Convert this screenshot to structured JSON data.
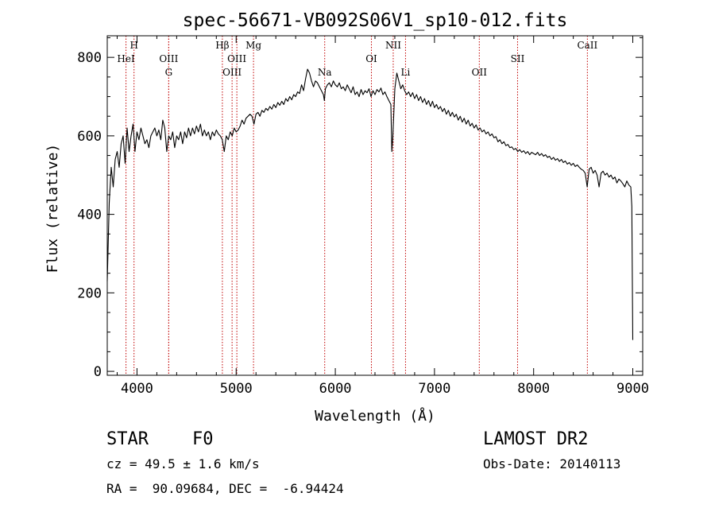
{
  "chart_data": {
    "type": "line",
    "title": "spec-56671-VB092S06V1_sp10-012.fits",
    "xlabel": "Wavelength (Å)",
    "ylabel": "Flux (relative)",
    "xlim": [
      3700,
      9100
    ],
    "ylim": [
      -10,
      855
    ],
    "xticks": [
      4000,
      5000,
      6000,
      7000,
      8000,
      9000
    ],
    "yticks": [
      0,
      200,
      400,
      600,
      800
    ],
    "grid": false,
    "line_color": "#000000",
    "marker_color": "#c00000",
    "spectral_lines": [
      {
        "label": "HeI",
        "wavelength": 3889,
        "row": 2
      },
      {
        "label": "H",
        "wavelength": 3970,
        "row": 1
      },
      {
        "label": "OIII",
        "wavelength": 4320,
        "row": 2
      },
      {
        "label": "G",
        "wavelength": 4320,
        "row": 3
      },
      {
        "label": "Hβ",
        "wavelength": 4861,
        "row": 1
      },
      {
        "label": "OIII",
        "wavelength": 5007,
        "row": 2
      },
      {
        "label": "OIII",
        "wavelength": 4959,
        "row": 3
      },
      {
        "label": "Mg",
        "wavelength": 5175,
        "row": 1
      },
      {
        "label": "Na",
        "wavelength": 5893,
        "row": 3
      },
      {
        "label": "OI",
        "wavelength": 6364,
        "row": 2
      },
      {
        "label": "NII",
        "wavelength": 6584,
        "row": 1
      },
      {
        "label": "Li",
        "wavelength": 6708,
        "row": 3
      },
      {
        "label": "OII",
        "wavelength": 7452,
        "row": 3
      },
      {
        "label": "SII",
        "wavelength": 7838,
        "row": 2
      },
      {
        "label": "CaII",
        "wavelength": 8542,
        "row": 1
      }
    ],
    "series": [
      {
        "points": [
          [
            3700,
            230
          ],
          [
            3720,
            430
          ],
          [
            3740,
            520
          ],
          [
            3760,
            470
          ],
          [
            3780,
            540
          ],
          [
            3800,
            560
          ],
          [
            3820,
            520
          ],
          [
            3840,
            580
          ],
          [
            3860,
            600
          ],
          [
            3880,
            530
          ],
          [
            3900,
            620
          ],
          [
            3920,
            560
          ],
          [
            3940,
            600
          ],
          [
            3960,
            630
          ],
          [
            3980,
            560
          ],
          [
            4000,
            610
          ],
          [
            4020,
            590
          ],
          [
            4040,
            620
          ],
          [
            4060,
            600
          ],
          [
            4080,
            580
          ],
          [
            4100,
            590
          ],
          [
            4120,
            570
          ],
          [
            4140,
            600
          ],
          [
            4160,
            610
          ],
          [
            4180,
            620
          ],
          [
            4200,
            600
          ],
          [
            4220,
            615
          ],
          [
            4240,
            590
          ],
          [
            4260,
            640
          ],
          [
            4280,
            620
          ],
          [
            4300,
            560
          ],
          [
            4320,
            600
          ],
          [
            4340,
            590
          ],
          [
            4360,
            610
          ],
          [
            4380,
            570
          ],
          [
            4400,
            600
          ],
          [
            4420,
            590
          ],
          [
            4440,
            610
          ],
          [
            4460,
            580
          ],
          [
            4480,
            610
          ],
          [
            4500,
            595
          ],
          [
            4520,
            620
          ],
          [
            4540,
            600
          ],
          [
            4560,
            620
          ],
          [
            4580,
            605
          ],
          [
            4600,
            625
          ],
          [
            4620,
            610
          ],
          [
            4640,
            630
          ],
          [
            4660,
            600
          ],
          [
            4680,
            615
          ],
          [
            4700,
            600
          ],
          [
            4720,
            610
          ],
          [
            4740,
            590
          ],
          [
            4760,
            610
          ],
          [
            4780,
            600
          ],
          [
            4800,
            615
          ],
          [
            4820,
            605
          ],
          [
            4840,
            600
          ],
          [
            4860,
            590
          ],
          [
            4880,
            560
          ],
          [
            4900,
            600
          ],
          [
            4920,
            590
          ],
          [
            4940,
            610
          ],
          [
            4960,
            600
          ],
          [
            4980,
            620
          ],
          [
            5000,
            610
          ],
          [
            5020,
            615
          ],
          [
            5040,
            625
          ],
          [
            5060,
            640
          ],
          [
            5080,
            630
          ],
          [
            5100,
            645
          ],
          [
            5120,
            650
          ],
          [
            5140,
            655
          ],
          [
            5160,
            650
          ],
          [
            5180,
            630
          ],
          [
            5200,
            655
          ],
          [
            5220,
            660
          ],
          [
            5240,
            650
          ],
          [
            5260,
            665
          ],
          [
            5280,
            660
          ],
          [
            5300,
            670
          ],
          [
            5320,
            665
          ],
          [
            5340,
            675
          ],
          [
            5360,
            668
          ],
          [
            5380,
            680
          ],
          [
            5400,
            672
          ],
          [
            5420,
            685
          ],
          [
            5440,
            678
          ],
          [
            5460,
            688
          ],
          [
            5480,
            680
          ],
          [
            5500,
            695
          ],
          [
            5520,
            688
          ],
          [
            5540,
            700
          ],
          [
            5560,
            692
          ],
          [
            5580,
            705
          ],
          [
            5600,
            700
          ],
          [
            5620,
            712
          ],
          [
            5640,
            708
          ],
          [
            5660,
            730
          ],
          [
            5680,
            715
          ],
          [
            5700,
            745
          ],
          [
            5720,
            770
          ],
          [
            5740,
            760
          ],
          [
            5760,
            740
          ],
          [
            5780,
            725
          ],
          [
            5800,
            740
          ],
          [
            5820,
            735
          ],
          [
            5840,
            725
          ],
          [
            5860,
            715
          ],
          [
            5880,
            705
          ],
          [
            5890,
            690
          ],
          [
            5900,
            720
          ],
          [
            5920,
            730
          ],
          [
            5940,
            735
          ],
          [
            5960,
            725
          ],
          [
            5980,
            740
          ],
          [
            6000,
            730
          ],
          [
            6020,
            725
          ],
          [
            6040,
            735
          ],
          [
            6060,
            720
          ],
          [
            6080,
            725
          ],
          [
            6100,
            715
          ],
          [
            6120,
            730
          ],
          [
            6140,
            720
          ],
          [
            6160,
            710
          ],
          [
            6180,
            725
          ],
          [
            6200,
            705
          ],
          [
            6220,
            712
          ],
          [
            6240,
            700
          ],
          [
            6260,
            718
          ],
          [
            6280,
            705
          ],
          [
            6300,
            715
          ],
          [
            6320,
            710
          ],
          [
            6340,
            720
          ],
          [
            6360,
            700
          ],
          [
            6380,
            715
          ],
          [
            6400,
            705
          ],
          [
            6420,
            718
          ],
          [
            6440,
            712
          ],
          [
            6460,
            722
          ],
          [
            6480,
            705
          ],
          [
            6500,
            712
          ],
          [
            6520,
            700
          ],
          [
            6540,
            690
          ],
          [
            6560,
            680
          ],
          [
            6570,
            560
          ],
          [
            6580,
            600
          ],
          [
            6600,
            720
          ],
          [
            6620,
            760
          ],
          [
            6640,
            740
          ],
          [
            6660,
            720
          ],
          [
            6680,
            730
          ],
          [
            6700,
            715
          ],
          [
            6720,
            705
          ],
          [
            6740,
            712
          ],
          [
            6760,
            700
          ],
          [
            6780,
            710
          ],
          [
            6800,
            695
          ],
          [
            6820,
            705
          ],
          [
            6840,
            690
          ],
          [
            6860,
            700
          ],
          [
            6880,
            685
          ],
          [
            6900,
            695
          ],
          [
            6920,
            680
          ],
          [
            6940,
            690
          ],
          [
            6960,
            675
          ],
          [
            6980,
            688
          ],
          [
            7000,
            672
          ],
          [
            7020,
            680
          ],
          [
            7040,
            668
          ],
          [
            7060,
            675
          ],
          [
            7080,
            662
          ],
          [
            7100,
            670
          ],
          [
            7120,
            655
          ],
          [
            7140,
            665
          ],
          [
            7160,
            650
          ],
          [
            7180,
            660
          ],
          [
            7200,
            648
          ],
          [
            7220,
            655
          ],
          [
            7240,
            640
          ],
          [
            7260,
            650
          ],
          [
            7280,
            635
          ],
          [
            7300,
            645
          ],
          [
            7320,
            630
          ],
          [
            7340,
            640
          ],
          [
            7360,
            625
          ],
          [
            7380,
            632
          ],
          [
            7400,
            620
          ],
          [
            7420,
            628
          ],
          [
            7440,
            615
          ],
          [
            7460,
            620
          ],
          [
            7480,
            610
          ],
          [
            7500,
            615
          ],
          [
            7520,
            605
          ],
          [
            7540,
            610
          ],
          [
            7560,
            600
          ],
          [
            7580,
            605
          ],
          [
            7600,
            595
          ],
          [
            7620,
            598
          ],
          [
            7640,
            585
          ],
          [
            7660,
            590
          ],
          [
            7680,
            580
          ],
          [
            7700,
            585
          ],
          [
            7720,
            575
          ],
          [
            7740,
            578
          ],
          [
            7760,
            570
          ],
          [
            7780,
            572
          ],
          [
            7800,
            565
          ],
          [
            7820,
            568
          ],
          [
            7840,
            560
          ],
          [
            7860,
            565
          ],
          [
            7880,
            558
          ],
          [
            7900,
            562
          ],
          [
            7920,
            555
          ],
          [
            7940,
            560
          ],
          [
            7960,
            552
          ],
          [
            7980,
            558
          ],
          [
            8000,
            555
          ],
          [
            8020,
            552
          ],
          [
            8040,
            558
          ],
          [
            8060,
            550
          ],
          [
            8080,
            555
          ],
          [
            8100,
            548
          ],
          [
            8120,
            552
          ],
          [
            8140,
            545
          ],
          [
            8160,
            548
          ],
          [
            8180,
            540
          ],
          [
            8200,
            545
          ],
          [
            8220,
            538
          ],
          [
            8240,
            542
          ],
          [
            8260,
            535
          ],
          [
            8280,
            540
          ],
          [
            8300,
            532
          ],
          [
            8320,
            536
          ],
          [
            8340,
            528
          ],
          [
            8360,
            532
          ],
          [
            8380,
            525
          ],
          [
            8400,
            530
          ],
          [
            8420,
            522
          ],
          [
            8440,
            526
          ],
          [
            8460,
            520
          ],
          [
            8480,
            515
          ],
          [
            8500,
            512
          ],
          [
            8520,
            505
          ],
          [
            8540,
            470
          ],
          [
            8560,
            515
          ],
          [
            8580,
            520
          ],
          [
            8600,
            505
          ],
          [
            8620,
            512
          ],
          [
            8640,
            500
          ],
          [
            8660,
            470
          ],
          [
            8680,
            505
          ],
          [
            8700,
            510
          ],
          [
            8720,
            500
          ],
          [
            8740,
            505
          ],
          [
            8760,
            495
          ],
          [
            8780,
            500
          ],
          [
            8800,
            490
          ],
          [
            8820,
            495
          ],
          [
            8840,
            480
          ],
          [
            8860,
            490
          ],
          [
            8880,
            485
          ],
          [
            8900,
            478
          ],
          [
            8920,
            470
          ],
          [
            8940,
            485
          ],
          [
            8960,
            475
          ],
          [
            8980,
            470
          ],
          [
            8990,
            420
          ],
          [
            9000,
            80
          ]
        ]
      }
    ]
  },
  "footer": {
    "object_class": "STAR",
    "subclass": "F0",
    "survey": "LAMOST DR2",
    "cz_line": "cz = 49.5 ± 1.6 km/s",
    "obs_date": "Obs-Date: 20140113",
    "coords": "RA =  90.09684, DEC =  -6.94424"
  }
}
